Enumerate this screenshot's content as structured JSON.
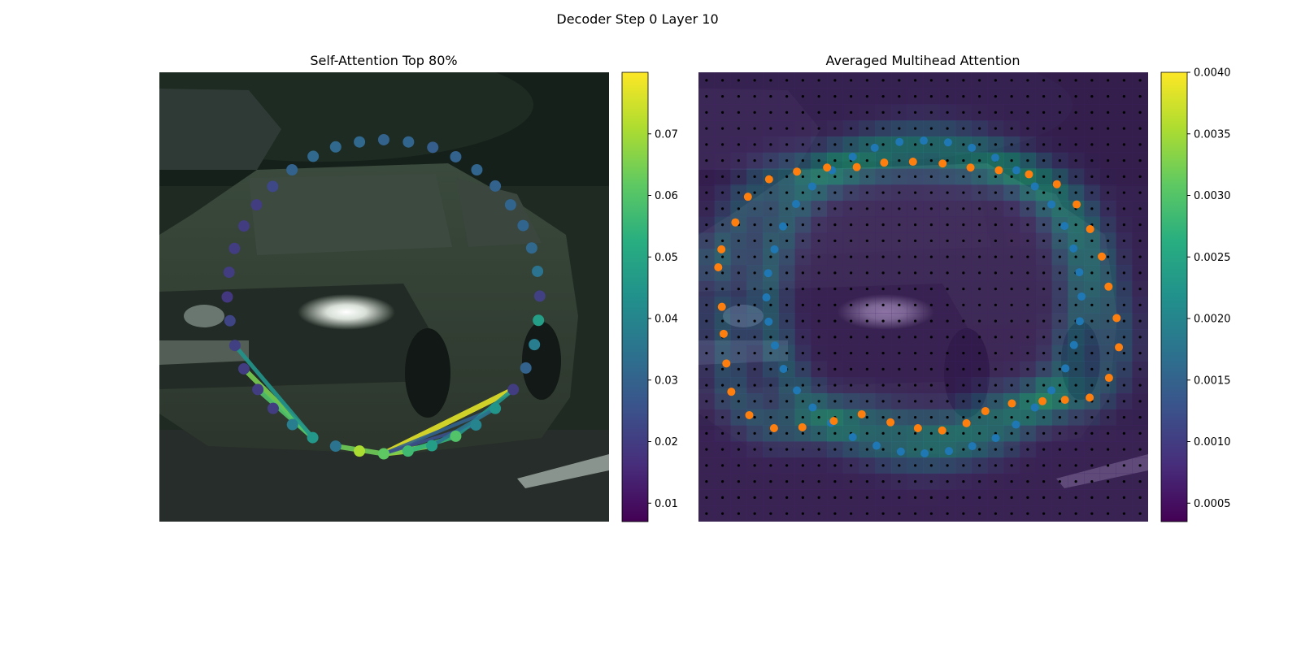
{
  "figure": {
    "title": "Decoder Step 0 Layer 10"
  },
  "chart_data": [
    {
      "type": "scatter",
      "title": "Self-Attention Top 80%",
      "background": "photo of a dark station wagon car on a road",
      "colormap": "viridis",
      "colorbar": {
        "min": 0.007,
        "max": 0.08,
        "ticks": [
          0.01,
          0.02,
          0.03,
          0.04,
          0.05,
          0.06,
          0.07
        ],
        "tick_labels": [
          "0.01",
          "0.02",
          "0.03",
          "0.04",
          "0.05",
          "0.06",
          "0.07"
        ]
      },
      "points": [
        {
          "x": 0.499,
          "y": 0.15,
          "v": 0.03
        },
        {
          "x": 0.554,
          "y": 0.155,
          "v": 0.031
        },
        {
          "x": 0.608,
          "y": 0.167,
          "v": 0.029
        },
        {
          "x": 0.659,
          "y": 0.188,
          "v": 0.03
        },
        {
          "x": 0.706,
          "y": 0.217,
          "v": 0.031
        },
        {
          "x": 0.747,
          "y": 0.253,
          "v": 0.03
        },
        {
          "x": 0.781,
          "y": 0.295,
          "v": 0.031
        },
        {
          "x": 0.809,
          "y": 0.341,
          "v": 0.031
        },
        {
          "x": 0.828,
          "y": 0.391,
          "v": 0.032
        },
        {
          "x": 0.841,
          "y": 0.443,
          "v": 0.035
        },
        {
          "x": 0.846,
          "y": 0.498,
          "v": 0.021
        },
        {
          "x": 0.843,
          "y": 0.552,
          "v": 0.048
        },
        {
          "x": 0.834,
          "y": 0.606,
          "v": 0.038
        },
        {
          "x": 0.815,
          "y": 0.658,
          "v": 0.03
        },
        {
          "x": 0.787,
          "y": 0.706,
          "v": 0.02
        },
        {
          "x": 0.747,
          "y": 0.748,
          "v": 0.045
        },
        {
          "x": 0.704,
          "y": 0.785,
          "v": 0.04
        },
        {
          "x": 0.659,
          "y": 0.81,
          "v": 0.06
        },
        {
          "x": 0.606,
          "y": 0.831,
          "v": 0.048
        },
        {
          "x": 0.553,
          "y": 0.843,
          "v": 0.057
        },
        {
          "x": 0.499,
          "y": 0.849,
          "v": 0.062
        },
        {
          "x": 0.445,
          "y": 0.843,
          "v": 0.071
        },
        {
          "x": 0.392,
          "y": 0.832,
          "v": 0.035
        },
        {
          "x": 0.341,
          "y": 0.813,
          "v": 0.046
        },
        {
          "x": 0.296,
          "y": 0.784,
          "v": 0.038
        },
        {
          "x": 0.253,
          "y": 0.748,
          "v": 0.02
        },
        {
          "x": 0.219,
          "y": 0.706,
          "v": 0.02
        },
        {
          "x": 0.188,
          "y": 0.66,
          "v": 0.02
        },
        {
          "x": 0.168,
          "y": 0.608,
          "v": 0.021
        },
        {
          "x": 0.157,
          "y": 0.553,
          "v": 0.022
        },
        {
          "x": 0.151,
          "y": 0.5,
          "v": 0.019
        },
        {
          "x": 0.155,
          "y": 0.445,
          "v": 0.02
        },
        {
          "x": 0.167,
          "y": 0.392,
          "v": 0.02
        },
        {
          "x": 0.188,
          "y": 0.342,
          "v": 0.02
        },
        {
          "x": 0.216,
          "y": 0.295,
          "v": 0.02
        },
        {
          "x": 0.252,
          "y": 0.254,
          "v": 0.023
        },
        {
          "x": 0.295,
          "y": 0.217,
          "v": 0.03
        },
        {
          "x": 0.342,
          "y": 0.187,
          "v": 0.032
        },
        {
          "x": 0.392,
          "y": 0.166,
          "v": 0.032
        },
        {
          "x": 0.445,
          "y": 0.155,
          "v": 0.032
        }
      ],
      "connections": [
        {
          "from": 20,
          "to": 14,
          "v": 0.077
        },
        {
          "from": 20,
          "to": 19,
          "v": 0.07
        },
        {
          "from": 20,
          "to": 18,
          "v": 0.065
        },
        {
          "from": 19,
          "to": 17,
          "v": 0.055
        },
        {
          "from": 20,
          "to": 22,
          "v": 0.064
        },
        {
          "from": 20,
          "to": 15,
          "v": 0.03
        },
        {
          "from": 20,
          "to": 16,
          "v": 0.025
        },
        {
          "from": 23,
          "to": 27,
          "v": 0.065
        },
        {
          "from": 23,
          "to": 26,
          "v": 0.06
        },
        {
          "from": 23,
          "to": 28,
          "v": 0.045
        },
        {
          "from": 17,
          "to": 14,
          "v": 0.045
        },
        {
          "from": 18,
          "to": 15,
          "v": 0.035
        }
      ]
    },
    {
      "type": "heatmap",
      "title": "Averaged Multihead Attention",
      "background": "photo of the same car, darkened",
      "colormap": "viridis",
      "grid": {
        "rows": 28,
        "cols": 28
      },
      "colorbar": {
        "min": 0.00035,
        "max": 0.004,
        "ticks": [
          0.0005,
          0.001,
          0.0015,
          0.002,
          0.0025,
          0.003,
          0.0035,
          0.004
        ],
        "tick_labels": [
          "0.0005",
          "0.0010",
          "0.0015",
          "0.0020",
          "0.0025",
          "0.0030",
          "0.0035",
          "0.0040"
        ]
      },
      "blue_points": [
        {
          "x": 0.343,
          "y": 0.188
        },
        {
          "x": 0.392,
          "y": 0.168
        },
        {
          "x": 0.447,
          "y": 0.155
        },
        {
          "x": 0.501,
          "y": 0.152
        },
        {
          "x": 0.555,
          "y": 0.156
        },
        {
          "x": 0.608,
          "y": 0.168
        },
        {
          "x": 0.66,
          "y": 0.19
        },
        {
          "x": 0.707,
          "y": 0.218
        },
        {
          "x": 0.748,
          "y": 0.254
        },
        {
          "x": 0.785,
          "y": 0.294
        },
        {
          "x": 0.814,
          "y": 0.342
        },
        {
          "x": 0.834,
          "y": 0.392
        },
        {
          "x": 0.847,
          "y": 0.445
        },
        {
          "x": 0.852,
          "y": 0.499
        },
        {
          "x": 0.848,
          "y": 0.554
        },
        {
          "x": 0.835,
          "y": 0.607
        },
        {
          "x": 0.816,
          "y": 0.659
        },
        {
          "x": 0.785,
          "y": 0.708
        },
        {
          "x": 0.748,
          "y": 0.746
        },
        {
          "x": 0.706,
          "y": 0.784
        },
        {
          "x": 0.661,
          "y": 0.814
        },
        {
          "x": 0.609,
          "y": 0.832
        },
        {
          "x": 0.557,
          "y": 0.843
        },
        {
          "x": 0.503,
          "y": 0.848
        },
        {
          "x": 0.45,
          "y": 0.844
        },
        {
          "x": 0.396,
          "y": 0.831
        },
        {
          "x": 0.343,
          "y": 0.812
        },
        {
          "x": 0.295,
          "y": 0.78
        },
        {
          "x": 0.254,
          "y": 0.746
        },
        {
          "x": 0.219,
          "y": 0.708
        },
        {
          "x": 0.189,
          "y": 0.66
        },
        {
          "x": 0.17,
          "y": 0.608
        },
        {
          "x": 0.156,
          "y": 0.555
        },
        {
          "x": 0.151,
          "y": 0.501
        },
        {
          "x": 0.155,
          "y": 0.447
        },
        {
          "x": 0.169,
          "y": 0.394
        },
        {
          "x": 0.188,
          "y": 0.343
        },
        {
          "x": 0.217,
          "y": 0.293
        },
        {
          "x": 0.253,
          "y": 0.254
        },
        {
          "x": 0.297,
          "y": 0.218
        }
      ],
      "orange_points": [
        {
          "x": 0.044,
          "y": 0.434
        },
        {
          "x": 0.051,
          "y": 0.394
        },
        {
          "x": 0.082,
          "y": 0.334
        },
        {
          "x": 0.11,
          "y": 0.277
        },
        {
          "x": 0.157,
          "y": 0.238
        },
        {
          "x": 0.219,
          "y": 0.221
        },
        {
          "x": 0.286,
          "y": 0.212
        },
        {
          "x": 0.352,
          "y": 0.211
        },
        {
          "x": 0.413,
          "y": 0.201
        },
        {
          "x": 0.477,
          "y": 0.199
        },
        {
          "x": 0.543,
          "y": 0.203
        },
        {
          "x": 0.605,
          "y": 0.212
        },
        {
          "x": 0.668,
          "y": 0.218
        },
        {
          "x": 0.735,
          "y": 0.227
        },
        {
          "x": 0.797,
          "y": 0.249
        },
        {
          "x": 0.841,
          "y": 0.294
        },
        {
          "x": 0.871,
          "y": 0.349
        },
        {
          "x": 0.897,
          "y": 0.41
        },
        {
          "x": 0.912,
          "y": 0.477
        },
        {
          "x": 0.93,
          "y": 0.547
        },
        {
          "x": 0.935,
          "y": 0.612
        },
        {
          "x": 0.913,
          "y": 0.68
        },
        {
          "x": 0.87,
          "y": 0.724
        },
        {
          "x": 0.815,
          "y": 0.729
        },
        {
          "x": 0.765,
          "y": 0.732
        },
        {
          "x": 0.697,
          "y": 0.737
        },
        {
          "x": 0.638,
          "y": 0.754
        },
        {
          "x": 0.596,
          "y": 0.781
        },
        {
          "x": 0.542,
          "y": 0.797
        },
        {
          "x": 0.488,
          "y": 0.792
        },
        {
          "x": 0.427,
          "y": 0.779
        },
        {
          "x": 0.363,
          "y": 0.761
        },
        {
          "x": 0.301,
          "y": 0.776
        },
        {
          "x": 0.231,
          "y": 0.79
        },
        {
          "x": 0.168,
          "y": 0.792
        },
        {
          "x": 0.113,
          "y": 0.763
        },
        {
          "x": 0.073,
          "y": 0.711
        },
        {
          "x": 0.062,
          "y": 0.648
        },
        {
          "x": 0.056,
          "y": 0.582
        },
        {
          "x": 0.052,
          "y": 0.522
        }
      ]
    }
  ]
}
